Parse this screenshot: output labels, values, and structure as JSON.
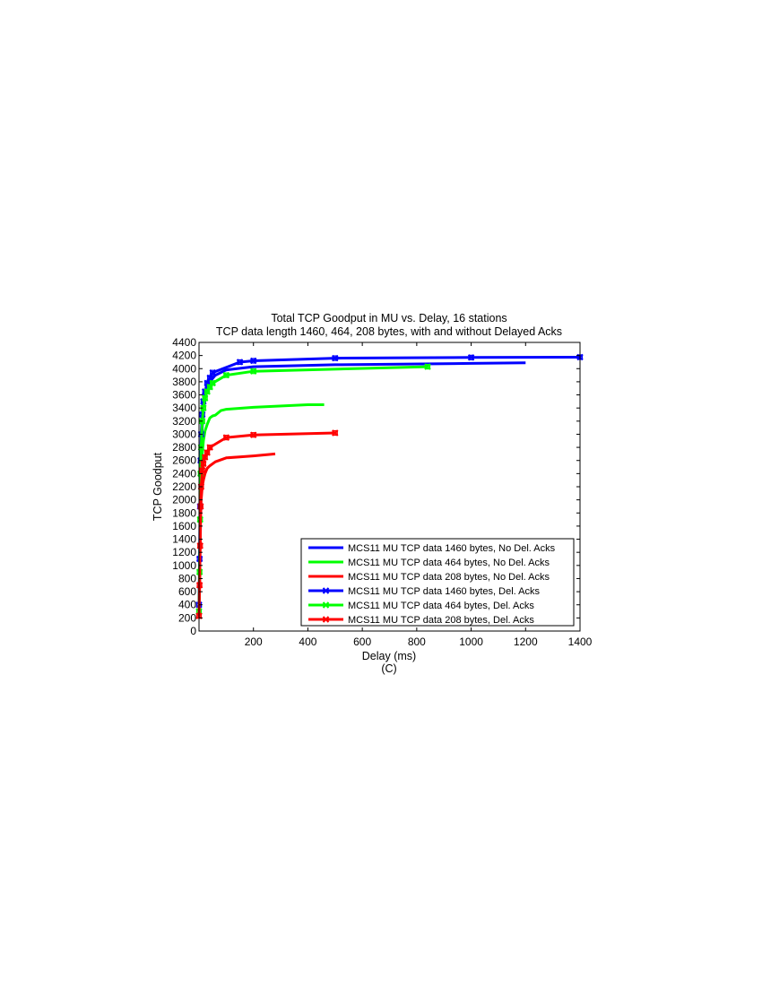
{
  "chart_data": {
    "type": "line",
    "title": "Total TCP Goodput in MU vs. Delay, 16 stations",
    "subtitle": "TCP data length 1460, 464, 208 bytes, with and without Delayed Acks",
    "xlabel": "Delay (ms)",
    "caption": "(C)",
    "ylabel": "TCP Goodput",
    "xlim": [
      0,
      1400
    ],
    "ylim": [
      0,
      4400
    ],
    "xticks": [
      200,
      400,
      600,
      800,
      1000,
      1200,
      1400
    ],
    "yticks": [
      0,
      200,
      400,
      600,
      800,
      1000,
      1200,
      1400,
      1600,
      1800,
      2000,
      2200,
      2400,
      2600,
      2800,
      3000,
      3200,
      3400,
      3600,
      3800,
      4000,
      4200,
      4400
    ],
    "grid": false,
    "legend_position": "bottom-right",
    "series": [
      {
        "name": "MCS11 MU TCP data 1460 bytes, No Del. Acks",
        "color": "#0000ff",
        "markers": false,
        "x": [
          0,
          2,
          4,
          6,
          8,
          12,
          16,
          22,
          30,
          40,
          60,
          100,
          200,
          500,
          1000,
          1200
        ],
        "y": [
          350,
          800,
          1500,
          2200,
          2700,
          3100,
          3400,
          3600,
          3700,
          3800,
          3900,
          3980,
          4030,
          4060,
          4080,
          4090
        ]
      },
      {
        "name": "MCS11 MU TCP data 464 bytes, No Del. Acks",
        "color": "#00ff00",
        "markers": false,
        "x": [
          0,
          2,
          4,
          6,
          8,
          12,
          16,
          22,
          30,
          40,
          50,
          60,
          80,
          100,
          200,
          400,
          460
        ],
        "y": [
          250,
          700,
          1400,
          2000,
          2400,
          2700,
          2900,
          3050,
          3150,
          3250,
          3280,
          3290,
          3360,
          3380,
          3410,
          3450,
          3450
        ]
      },
      {
        "name": "MCS11 MU TCP data 208 bytes, No Del. Acks",
        "color": "#ff0000",
        "markers": false,
        "x": [
          0,
          2,
          4,
          6,
          8,
          12,
          16,
          22,
          30,
          40,
          60,
          100,
          200,
          280
        ],
        "y": [
          200,
          600,
          1200,
          1700,
          2000,
          2200,
          2300,
          2400,
          2480,
          2520,
          2580,
          2640,
          2670,
          2700
        ]
      },
      {
        "name": "MCS11 MU TCP data 1460 bytes, Del. Acks",
        "color": "#0000ff",
        "markers": true,
        "x": [
          0,
          2,
          4,
          6,
          8,
          12,
          16,
          22,
          30,
          40,
          50,
          150,
          200,
          500,
          1000,
          1400
        ],
        "y": [
          400,
          1100,
          1900,
          2600,
          3000,
          3300,
          3500,
          3650,
          3780,
          3860,
          3940,
          4100,
          4120,
          4160,
          4170,
          4175
        ]
      },
      {
        "name": "MCS11 MU TCP data 464 bytes, Del. Acks",
        "color": "#00ff00",
        "markers": true,
        "x": [
          0,
          2,
          4,
          6,
          8,
          12,
          16,
          22,
          30,
          40,
          50,
          100,
          200,
          840
        ],
        "y": [
          300,
          900,
          1700,
          2400,
          2800,
          3200,
          3400,
          3550,
          3650,
          3720,
          3780,
          3900,
          3960,
          4030
        ]
      },
      {
        "name": "MCS11 MU TCP data 208 bytes, Del. Acks",
        "color": "#ff0000",
        "markers": true,
        "x": [
          0,
          2,
          4,
          6,
          8,
          12,
          16,
          22,
          30,
          40,
          100,
          200,
          500
        ],
        "y": [
          230,
          700,
          1300,
          1900,
          2200,
          2450,
          2550,
          2650,
          2720,
          2800,
          2950,
          2990,
          3020
        ]
      }
    ]
  }
}
